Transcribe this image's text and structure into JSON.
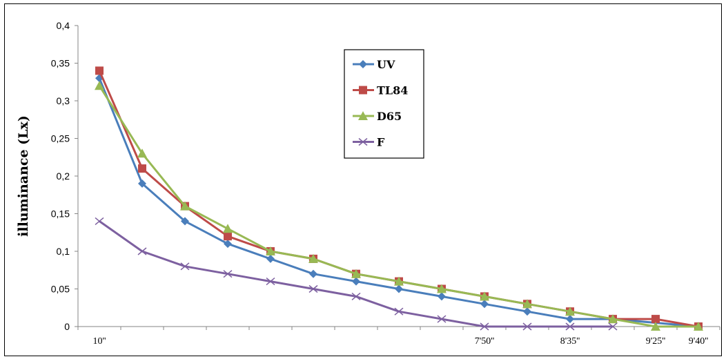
{
  "chart_data": {
    "type": "line",
    "title": "",
    "xlabel": "",
    "ylabel": "illuminance (Lx)",
    "ylim": [
      0,
      0.4
    ],
    "y_ticks": [
      "0",
      "0,05",
      "0,1",
      "0,15",
      "0,2",
      "0,25",
      "0,3",
      "0,35",
      "0,4"
    ],
    "y_tick_values": [
      0,
      0.05,
      0.1,
      0.15,
      0.2,
      0.25,
      0.3,
      0.35,
      0.4
    ],
    "x_tick_labels": [
      {
        "index": 0,
        "label": "10''"
      },
      {
        "index": 9,
        "label": "7'50''"
      },
      {
        "index": 11,
        "label": "8'35''"
      },
      {
        "index": 13,
        "label": "9'25''"
      },
      {
        "index": 14,
        "label": "9'40''"
      }
    ],
    "x_points": 15,
    "grid": false,
    "legend_position": "top-center",
    "series": [
      {
        "name": "UV",
        "color": "#4a7ebb",
        "marker": "diamond",
        "values": [
          0.33,
          0.19,
          0.14,
          0.11,
          0.09,
          0.07,
          0.06,
          0.05,
          0.04,
          0.03,
          0.02,
          0.01,
          0.01,
          null,
          0
        ]
      },
      {
        "name": "TL84",
        "color": "#be4b48",
        "marker": "square",
        "values": [
          0.34,
          0.21,
          0.16,
          0.12,
          0.1,
          0.09,
          0.07,
          0.06,
          0.05,
          0.04,
          0.03,
          0.02,
          0.01,
          0.01,
          0
        ]
      },
      {
        "name": "D65",
        "color": "#98b954",
        "marker": "triangle",
        "values": [
          0.32,
          0.23,
          0.16,
          0.13,
          0.1,
          0.09,
          0.07,
          0.06,
          0.05,
          0.04,
          0.03,
          0.02,
          0.01,
          0,
          0
        ]
      },
      {
        "name": "F",
        "color": "#7d60a0",
        "marker": "x",
        "values": [
          0.14,
          0.1,
          0.08,
          0.07,
          0.06,
          0.05,
          0.04,
          0.02,
          0.01,
          0,
          0,
          0,
          0,
          null,
          null
        ]
      }
    ]
  }
}
